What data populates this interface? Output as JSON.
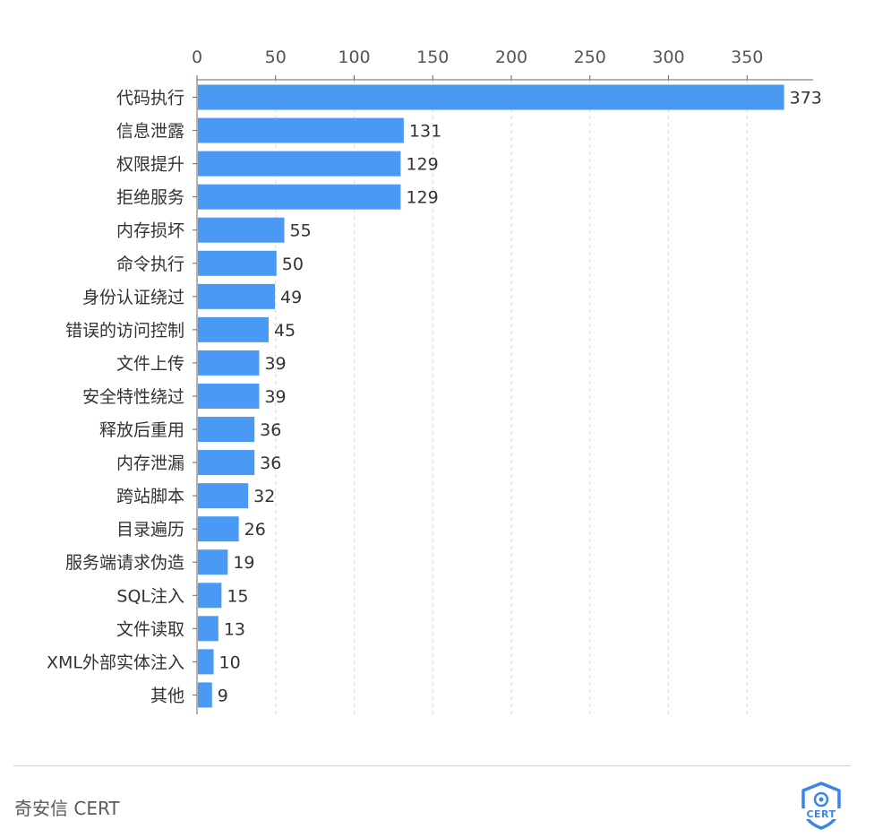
{
  "chart_data": {
    "type": "bar",
    "orientation": "horizontal",
    "categories": [
      "代码执行",
      "信息泄露",
      "权限提升",
      "拒绝服务",
      "内存损坏",
      "命令执行",
      "身份认证绕过",
      "错误的访问控制",
      "文件上传",
      "安全特性绕过",
      "释放后重用",
      "内存泄漏",
      "跨站脚本",
      "目录遍历",
      "服务端请求伪造",
      "SQL注入",
      "文件读取",
      "XML外部实体注入",
      "其他"
    ],
    "values": [
      373,
      131,
      129,
      129,
      55,
      50,
      49,
      45,
      39,
      39,
      36,
      36,
      32,
      26,
      19,
      15,
      13,
      10,
      9
    ],
    "xaxis_ticks": [
      "0",
      "50",
      "100",
      "150",
      "200",
      "250",
      "300",
      "350"
    ],
    "xlim": [
      0,
      393
    ],
    "xaxis_position": "top",
    "grid": "vertical-dashed",
    "bar_color": "#4a9af5",
    "data_labels": true
  },
  "footer": {
    "brand": "奇安信 CERT",
    "logo_text": "CERT"
  }
}
